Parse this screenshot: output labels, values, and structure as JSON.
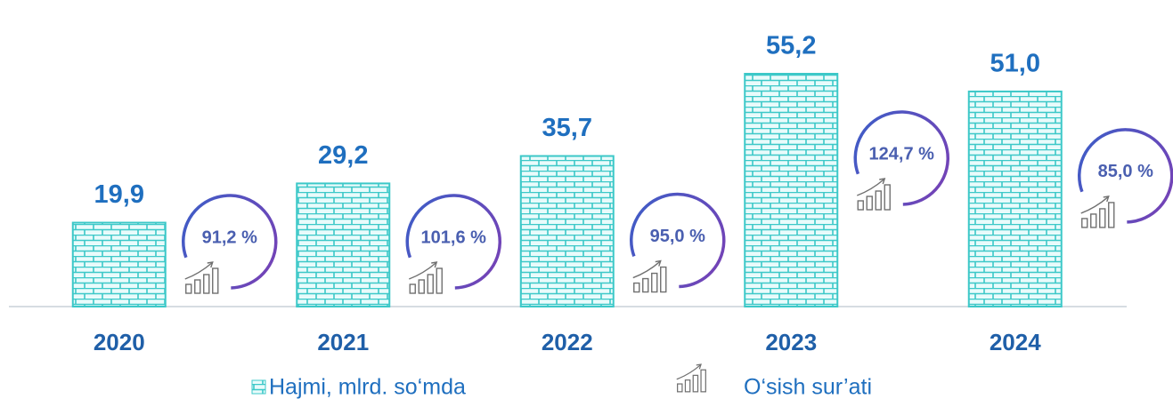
{
  "chart_data": {
    "type": "bar",
    "categories": [
      "2020",
      "2021",
      "2022",
      "2023",
      "2024"
    ],
    "series": [
      {
        "name": "Hajmi, mlrd. so‘mda",
        "color": "#3cc8c8",
        "values": [
          19.9,
          29.2,
          35.7,
          55.2,
          51.0
        ],
        "value_labels": [
          "19,9",
          "29,2",
          "35,7",
          "55,2",
          "51,0"
        ]
      },
      {
        "name": "O‘sish sur’ati",
        "color": "#5a4fb0",
        "values": [
          91.2,
          101.6,
          95.0,
          124.7,
          85.0
        ],
        "value_labels": [
          "91,2 %",
          "101,6 %",
          "95,0 %",
          "124,7 %",
          "85,0 %"
        ]
      }
    ]
  }
}
